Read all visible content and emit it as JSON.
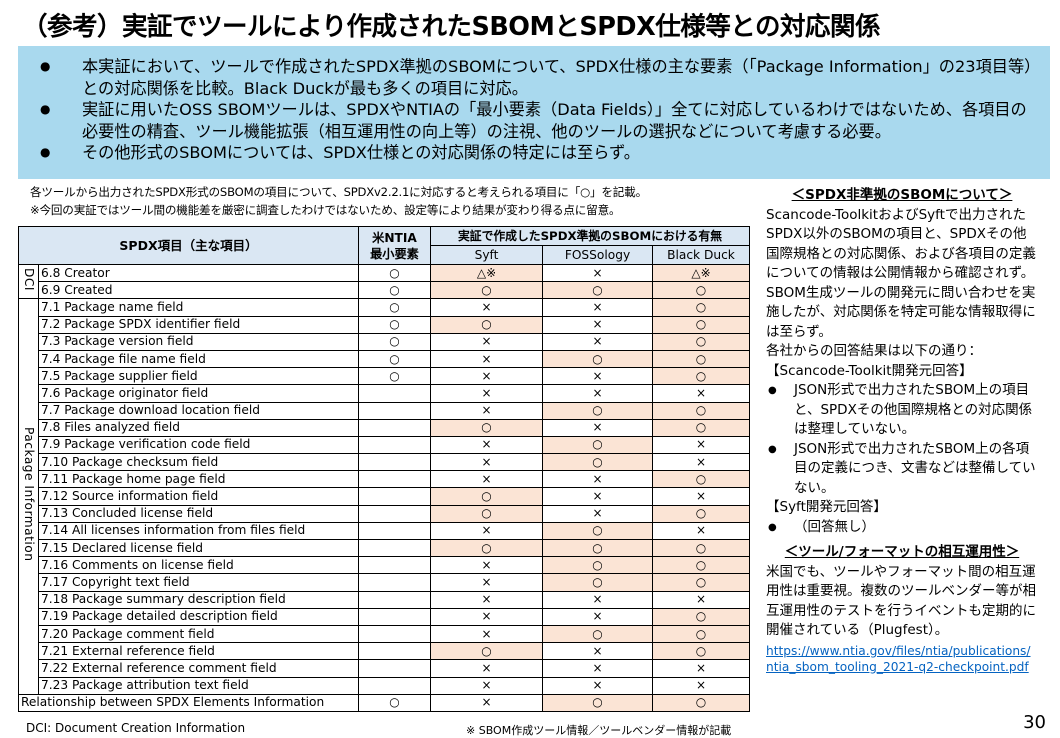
{
  "title": "（参考）実証でツールにより作成されたSBOMとSPDX仕様等との対応関係",
  "summary": [
    "本実証において、ツールで作成されたSPDX準拠のSBOMについて、SPDX仕様の主な要素（「Package Information」の23項目等）との対応関係を比較。Black Duckが最も多くの項目に対応。",
    "実証に用いたOSS SBOMツールは、SPDXやNTIAの「最小要素（Data Fields）」全てに対応しているわけではないため、各項目の必要性の精査、ツール機能拡張（相互運用性の向上等）の注視、他のツールの選択などについて考慮する必要。",
    "その他形式のSBOMについては、SPDX仕様との対応関係の特定には至らず。"
  ],
  "bullet": "●",
  "notes": {
    "line1": "各ツールから出力されたSPDX形式のSBOMの項目について、SPDXv2.2.1に対応すると考えられる項目に「○」を記載。",
    "line2": "※今回の実証ではツール間の機能差を厳密に調査したわけではないため、設定等により結果が変わり得る点に留意。"
  },
  "table": {
    "header_item": "SPDX項目（主な項目）",
    "header_ntia_line1": "米NTIA",
    "header_ntia_line2": "最小要素",
    "header_tools": "実証で作成したSPDX準拠のSBOMにおける有無",
    "tools": [
      "Syft",
      "FOSSology",
      "Black Duck"
    ],
    "group_dci": "DCI",
    "group_pkg": "Package Information",
    "rows": [
      {
        "item": "6.8 Creator",
        "ntia": "○",
        "syft": "△※",
        "foss": "×",
        "bd": "△※"
      },
      {
        "item": "6.9 Created",
        "ntia": "○",
        "syft": "○",
        "foss": "○",
        "bd": "○"
      },
      {
        "item": "7.1 Package name field",
        "ntia": "○",
        "syft": "×",
        "foss": "×",
        "bd": "○"
      },
      {
        "item": "7.2 Package SPDX identifier field",
        "ntia": "○",
        "syft": "○",
        "foss": "×",
        "bd": "○"
      },
      {
        "item": "7.3 Package version field",
        "ntia": "○",
        "syft": "×",
        "foss": "×",
        "bd": "○"
      },
      {
        "item": "7.4 Package file name field",
        "ntia": "○",
        "syft": "×",
        "foss": "○",
        "bd": "○"
      },
      {
        "item": "7.5 Package supplier field",
        "ntia": "○",
        "syft": "×",
        "foss": "×",
        "bd": "○"
      },
      {
        "item": "7.6 Package originator field",
        "ntia": "",
        "syft": "×",
        "foss": "×",
        "bd": "×"
      },
      {
        "item": "7.7 Package download location field",
        "ntia": "",
        "syft": "×",
        "foss": "○",
        "bd": "○"
      },
      {
        "item": "7.8 Files analyzed field",
        "ntia": "",
        "syft": "○",
        "foss": "×",
        "bd": "○"
      },
      {
        "item": "7.9 Package verification code field",
        "ntia": "",
        "syft": "×",
        "foss": "○",
        "bd": "×"
      },
      {
        "item": "7.10 Package checksum field",
        "ntia": "",
        "syft": "×",
        "foss": "○",
        "bd": "×"
      },
      {
        "item": "7.11 Package home page field",
        "ntia": "",
        "syft": "×",
        "foss": "×",
        "bd": "○"
      },
      {
        "item": "7.12 Source information field",
        "ntia": "",
        "syft": "○",
        "foss": "×",
        "bd": "×"
      },
      {
        "item": "7.13 Concluded license field",
        "ntia": "",
        "syft": "○",
        "foss": "×",
        "bd": "○"
      },
      {
        "item": "7.14 All licenses information from files field",
        "ntia": "",
        "syft": "×",
        "foss": "○",
        "bd": "×"
      },
      {
        "item": "7.15 Declared license field",
        "ntia": "",
        "syft": "○",
        "foss": "○",
        "bd": "○"
      },
      {
        "item": "7.16 Comments on license field",
        "ntia": "",
        "syft": "×",
        "foss": "○",
        "bd": "○"
      },
      {
        "item": "7.17 Copyright text field",
        "ntia": "",
        "syft": "×",
        "foss": "○",
        "bd": "○"
      },
      {
        "item": "7.18 Package summary description field",
        "ntia": "",
        "syft": "×",
        "foss": "×",
        "bd": "×"
      },
      {
        "item": "7.19 Package detailed description field",
        "ntia": "",
        "syft": "×",
        "foss": "×",
        "bd": "○"
      },
      {
        "item": "7.20 Package comment field",
        "ntia": "",
        "syft": "×",
        "foss": "○",
        "bd": "○"
      },
      {
        "item": "7.21 External reference field",
        "ntia": "",
        "syft": "○",
        "foss": "×",
        "bd": "○"
      },
      {
        "item": "7.22 External reference comment field",
        "ntia": "",
        "syft": "×",
        "foss": "×",
        "bd": "×"
      },
      {
        "item": "7.23 Package attribution text field",
        "ntia": "",
        "syft": "×",
        "foss": "×",
        "bd": "×"
      },
      {
        "item": "Relationship between SPDX Elements Information",
        "ntia": "○",
        "syft": "×",
        "foss": "○",
        "bd": "○"
      }
    ]
  },
  "footer": {
    "dci_note": "DCI: Document Creation Information",
    "asterisk_note": "※ SBOM作成ツール情報／ツールベンダー情報が記載",
    "page_number": "30"
  },
  "side": {
    "h1": "＜SPDX非準拠のSBOMについて＞",
    "p1": "Scancode-ToolkitおよびSyftで出力されたSPDX以外のSBOMの項目と、SPDXその他国際規格との対応関係、および各項目の定義についての情報は公開情報から確認されず。",
    "p2": "SBOM生成ツールの開発元に問い合わせを実施したが、対応関係を特定可能な情報取得には至らず。",
    "p3": "各社からの回答結果は以下の通り：",
    "p4": "【Scancode-Toolkit開発元回答】",
    "b1": "JSON形式で出力されたSBOM上の項目と、SPDXその他国際規格との対応関係は整理していない。",
    "b2": "JSON形式で出力されたSBOM上の各項目の定義につき、文書などは整備していない。",
    "p5": "【Syft開発元回答】",
    "b3": "（回答無し）",
    "h2": "＜ツール/フォーマットの相互運用性＞",
    "p6": "米国でも、ツールやフォーマット間の相互運用性は重要視。複数のツールベンダー等が相互運用性のテストを行うイベントも定期的に開催されている（Plugfest）。",
    "link": "https://www.ntia.gov/files/ntia/publications/ntia_sbom_tooling_2021-q2-checkpoint.pdf"
  },
  "colors": {
    "summary_bg": "#a9d9ee",
    "header_bg": "#dae7f3",
    "highlight": "#fbe4d5",
    "link": "#0563c1"
  }
}
